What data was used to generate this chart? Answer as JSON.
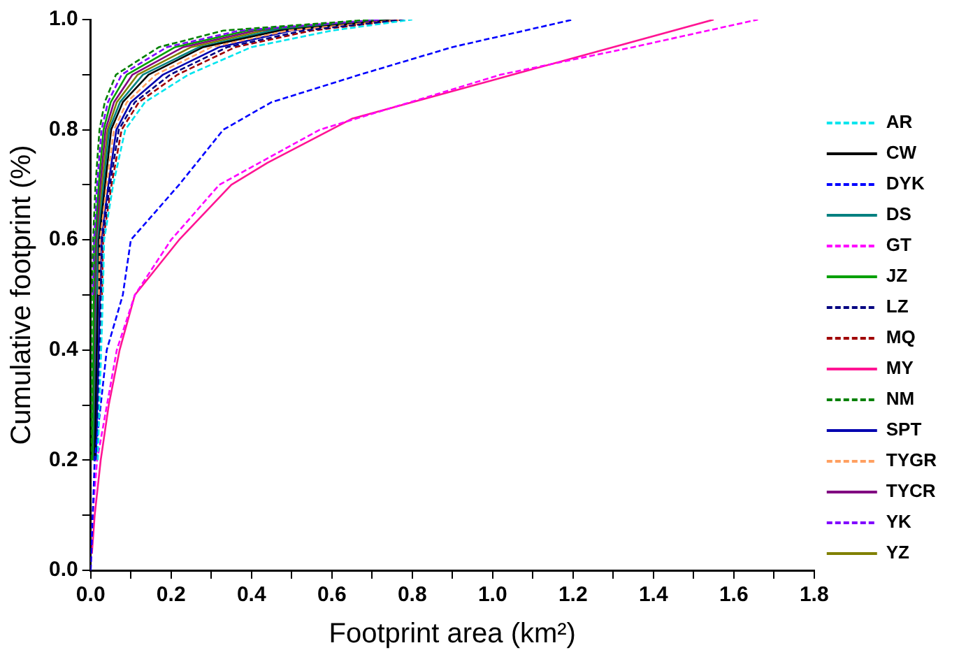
{
  "chart_data": {
    "type": "line",
    "xlabel": "Footprint area (km²)",
    "ylabel": "Cumulative footprint (%)",
    "xlim": [
      0,
      1.8
    ],
    "ylim": [
      0,
      1.0
    ],
    "xticks": [
      {
        "value": 0,
        "label": "0.0"
      },
      {
        "value": 0.1,
        "label": null
      },
      {
        "value": 0.2,
        "label": "0.2"
      },
      {
        "value": 0.3,
        "label": null
      },
      {
        "value": 0.4,
        "label": "0.4"
      },
      {
        "value": 0.5,
        "label": null
      },
      {
        "value": 0.6,
        "label": "0.6"
      },
      {
        "value": 0.7,
        "label": null
      },
      {
        "value": 0.8,
        "label": "0.8"
      },
      {
        "value": 0.9,
        "label": null
      },
      {
        "value": 1.0,
        "label": "1.0"
      },
      {
        "value": 1.1,
        "label": null
      },
      {
        "value": 1.2,
        "label": "1.2"
      },
      {
        "value": 1.3,
        "label": null
      },
      {
        "value": 1.4,
        "label": "1.4"
      },
      {
        "value": 1.5,
        "label": null
      },
      {
        "value": 1.6,
        "label": "1.6"
      },
      {
        "value": 1.7,
        "label": null
      },
      {
        "value": 1.8,
        "label": "1.8"
      }
    ],
    "yticks": [
      {
        "value": 0,
        "label": "0.0"
      },
      {
        "value": 0.1,
        "label": null
      },
      {
        "value": 0.2,
        "label": "0.2"
      },
      {
        "value": 0.3,
        "label": null
      },
      {
        "value": 0.4,
        "label": "0.4"
      },
      {
        "value": 0.5,
        "label": null
      },
      {
        "value": 0.6,
        "label": "0.6"
      },
      {
        "value": 0.7,
        "label": null
      },
      {
        "value": 0.8,
        "label": "0.8"
      },
      {
        "value": 0.9,
        "label": null
      },
      {
        "value": 1.0,
        "label": "1.0"
      }
    ],
    "grid": false,
    "legend": "right",
    "marker": "none",
    "series": [
      {
        "name": "AR",
        "color": "#00e5ee",
        "line_style": "dashed",
        "x": [
          0.0175,
          0.0305,
          0.0335,
          0.056,
          0.086,
          0.135,
          0.243,
          0.4,
          0.6,
          0.8
        ],
        "values": [
          0.2,
          0.5,
          0.6,
          0.7,
          0.8,
          0.85,
          0.9,
          0.95,
          0.98,
          1.0
        ]
      },
      {
        "name": "CW",
        "color": "#000000",
        "line_style": "solid",
        "x": [
          0.01,
          0.018,
          0.021,
          0.036,
          0.051,
          0.08,
          0.144,
          0.28,
          0.47,
          0.76
        ],
        "values": [
          0.2,
          0.5,
          0.6,
          0.7,
          0.8,
          0.85,
          0.9,
          0.95,
          0.98,
          1.0
        ]
      },
      {
        "name": "DYK",
        "color": "#0000ff",
        "line_style": "dashed",
        "x": [
          0,
          0.01,
          0.04,
          0.08,
          0.1,
          0.22,
          0.33,
          0.45,
          0.67,
          0.9,
          1.2
        ],
        "values": [
          0,
          0.2,
          0.4,
          0.5,
          0.6,
          0.7,
          0.8,
          0.85,
          0.9,
          0.95,
          1.0
        ]
      },
      {
        "name": "DS",
        "color": "#008080",
        "line_style": "solid",
        "x": [
          0.0085,
          0.0155,
          0.0185,
          0.032,
          0.046,
          0.073,
          0.13,
          0.27,
          0.45,
          0.76
        ],
        "values": [
          0.2,
          0.5,
          0.6,
          0.7,
          0.8,
          0.85,
          0.9,
          0.95,
          0.98,
          1.0
        ]
      },
      {
        "name": "GT",
        "color": "#ff00ff",
        "line_style": "dashed",
        "x": [
          0,
          0.005,
          0.016,
          0.065,
          0.11,
          0.2,
          0.32,
          0.57,
          1.02,
          1.35,
          1.66
        ],
        "values": [
          0,
          0.1,
          0.2,
          0.4,
          0.5,
          0.6,
          0.7,
          0.8,
          0.9,
          0.95,
          1.0
        ]
      },
      {
        "name": "JZ",
        "color": "#00a000",
        "line_style": "solid",
        "x": [
          0.004,
          0.008,
          0.011,
          0.02,
          0.032,
          0.05,
          0.09,
          0.21,
          0.39,
          0.74
        ],
        "values": [
          0.2,
          0.5,
          0.6,
          0.7,
          0.8,
          0.85,
          0.9,
          0.95,
          0.98,
          1.0
        ]
      },
      {
        "name": "LZ",
        "color": "#000080",
        "line_style": "dashed",
        "x": [
          0.0145,
          0.0255,
          0.0285,
          0.048,
          0.07,
          0.11,
          0.198,
          0.34,
          0.53,
          0.78
        ],
        "values": [
          0.2,
          0.5,
          0.6,
          0.7,
          0.8,
          0.85,
          0.9,
          0.95,
          0.98,
          1.0
        ]
      },
      {
        "name": "MQ",
        "color": "#a00000",
        "line_style": "dashed",
        "x": [
          0.028,
          0.031,
          0.052,
          0.077,
          0.12,
          0.216,
          0.36,
          0.55,
          0.78
        ],
        "values": [
          0.5,
          0.6,
          0.7,
          0.8,
          0.85,
          0.9,
          0.95,
          0.98,
          1.0
        ]
      },
      {
        "name": "MY",
        "color": "#ff1493",
        "line_style": "solid",
        "x": [
          0.003,
          0.01,
          0.025,
          0.045,
          0.072,
          0.11,
          0.22,
          0.35,
          0.44,
          0.65,
          1.0,
          1.2,
          1.55
        ],
        "values": [
          0.03,
          0.1,
          0.2,
          0.3,
          0.4,
          0.5,
          0.6,
          0.7,
          0.74,
          0.82,
          0.89,
          0.93,
          1.0
        ]
      },
      {
        "name": "NM",
        "color": "#008000",
        "line_style": "dashed",
        "x": [
          0.001,
          0.003,
          0.006,
          0.012,
          0.022,
          0.035,
          0.063,
          0.17,
          0.33,
          0.7
        ],
        "values": [
          0.2,
          0.5,
          0.6,
          0.7,
          0.8,
          0.85,
          0.9,
          0.95,
          0.98,
          1.0
        ]
      },
      {
        "name": "SPT",
        "color": "#0000b0",
        "line_style": "solid",
        "x": [
          0.013,
          0.023,
          0.026,
          0.044,
          0.064,
          0.1,
          0.18,
          0.32,
          0.5,
          0.72
        ],
        "values": [
          0.2,
          0.5,
          0.6,
          0.7,
          0.8,
          0.85,
          0.9,
          0.95,
          0.98,
          1.0
        ]
      },
      {
        "name": "TYGR",
        "color": "#ffa060",
        "line_style": "dashed",
        "x": [
          0.0205,
          0.0235,
          0.04,
          0.058,
          0.09,
          0.162,
          0.3,
          0.49,
          0.78
        ],
        "values": [
          0.5,
          0.6,
          0.7,
          0.8,
          0.85,
          0.9,
          0.95,
          0.98,
          1.0
        ]
      },
      {
        "name": "TYCR",
        "color": "#800080",
        "line_style": "solid",
        "x": [
          0.0055,
          0.0105,
          0.0135,
          0.024,
          0.037,
          0.058,
          0.104,
          0.23,
          0.41,
          0.74
        ],
        "values": [
          0.2,
          0.5,
          0.6,
          0.7,
          0.8,
          0.85,
          0.9,
          0.95,
          0.98,
          1.0
        ]
      },
      {
        "name": "YK",
        "color": "#8000ff",
        "line_style": "dashed",
        "x": [
          0.0055,
          0.0085,
          0.016,
          0.027,
          0.043,
          0.077,
          0.19,
          0.37,
          0.72
        ],
        "values": [
          0.5,
          0.6,
          0.7,
          0.8,
          0.85,
          0.9,
          0.95,
          0.98,
          1.0
        ]
      },
      {
        "name": "YZ",
        "color": "#808000",
        "line_style": "solid",
        "x": [
          0.007,
          0.013,
          0.016,
          0.028,
          0.042,
          0.065,
          0.117,
          0.25,
          0.43,
          0.76
        ],
        "values": [
          0.2,
          0.5,
          0.6,
          0.7,
          0.8,
          0.85,
          0.9,
          0.95,
          0.98,
          1.0
        ]
      }
    ]
  }
}
